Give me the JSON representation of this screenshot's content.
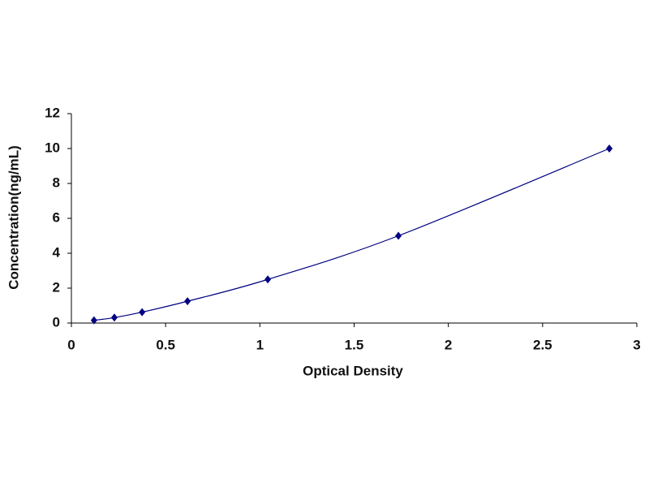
{
  "chart_data": {
    "type": "scatter",
    "x_label": "Optical Density",
    "y_label": "Concentration(ng/mL)",
    "series": [
      {
        "color": "#000080",
        "x": [
          0.12,
          0.228,
          0.375,
          0.616,
          1.042,
          1.735,
          2.854
        ],
        "values": [
          0.156,
          0.312,
          0.625,
          1.25,
          2.5,
          5,
          10
        ]
      }
    ],
    "smooth_line": true,
    "xlim": [
      0,
      3
    ],
    "xticks": [
      0,
      0.5,
      1,
      1.5,
      2,
      2.5,
      3
    ],
    "ylim": [
      0,
      12
    ],
    "yticks": [
      0,
      2,
      4,
      6,
      8,
      10,
      12
    ],
    "grid": false
  }
}
